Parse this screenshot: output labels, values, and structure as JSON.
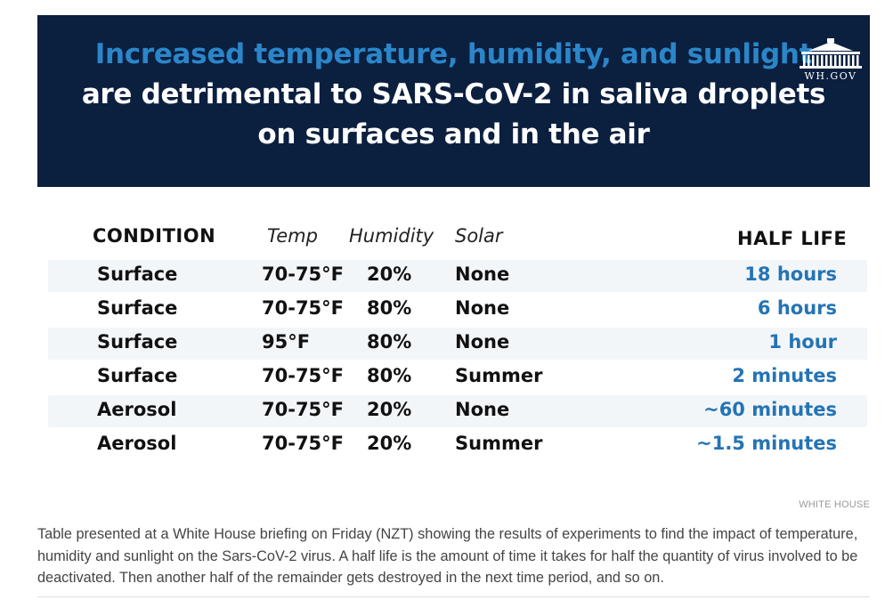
{
  "banner": {
    "line1": "Increased temperature, humidity, and sunlight",
    "line2": "are detrimental to SARS-CoV-2 in saliva droplets",
    "line3": "on surfaces and in the air",
    "logo_text": "WH.GOV",
    "bg_color": "#0b1f3f",
    "accent_color": "#2b86c9"
  },
  "table": {
    "headers": {
      "condition": "CONDITION",
      "temp": "Temp",
      "humidity": "Humidity",
      "solar": "Solar",
      "half_life": "HALF LIFE"
    },
    "rows": [
      {
        "condition": "Surface",
        "temp": "70-75°F",
        "humidity": "20%",
        "solar": "None",
        "half_life": "18 hours"
      },
      {
        "condition": "Surface",
        "temp": "70-75°F",
        "humidity": "80%",
        "solar": "None",
        "half_life": "6 hours"
      },
      {
        "condition": "Surface",
        "temp": "95°F",
        "humidity": "80%",
        "solar": "None",
        "half_life": "1 hour"
      },
      {
        "condition": "Surface",
        "temp": "70-75°F",
        "humidity": "80%",
        "solar": "Summer",
        "half_life": "2 minutes"
      },
      {
        "condition": "Aerosol",
        "temp": "70-75°F",
        "humidity": "20%",
        "solar": "None",
        "half_life": "~60 minutes"
      },
      {
        "condition": "Aerosol",
        "temp": "70-75°F",
        "humidity": "20%",
        "solar": "Summer",
        "half_life": "~1.5 minutes"
      }
    ],
    "half_life_color": "#2474b5"
  },
  "credit": "WHITE HOUSE",
  "caption": "Table presented at a White House briefing on Friday (NZT) showing the results of experiments to find the impact of temperature, humidity and sunlight on the Sars-CoV-2 virus. A half life is the amount of time it takes for half the quantity of virus involved to be deactivated. Then another half of the remainder gets destroyed in the next time period, and so on."
}
